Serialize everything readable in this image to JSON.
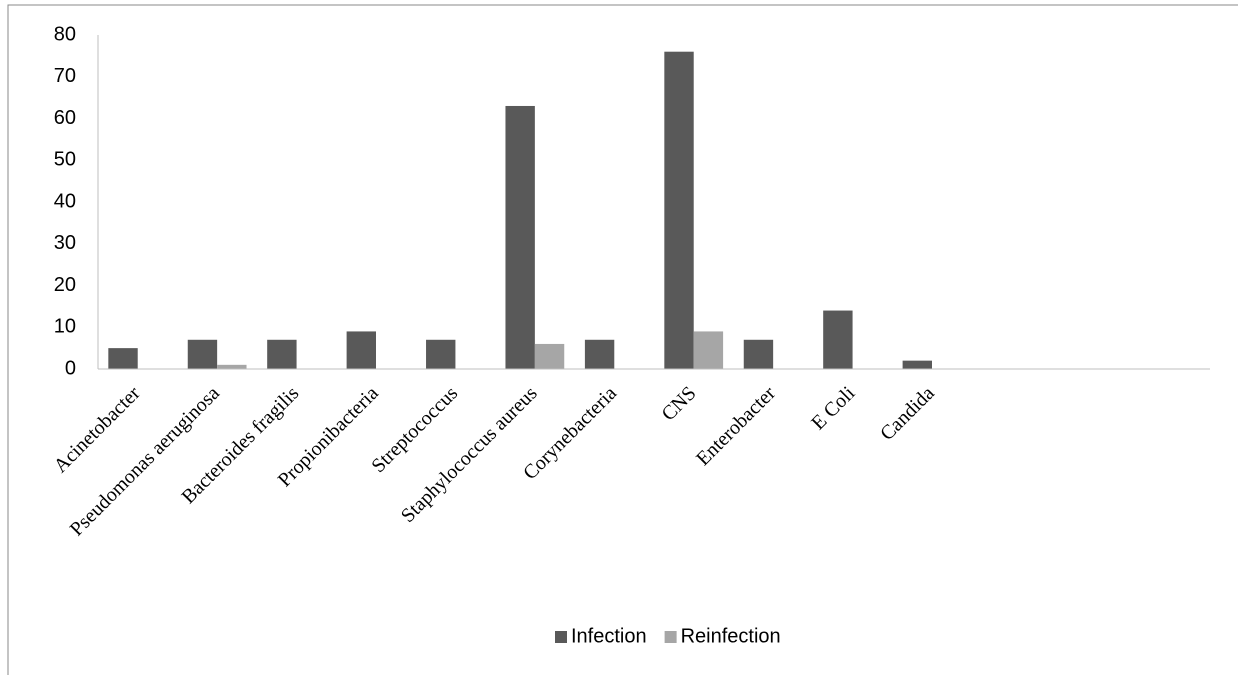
{
  "chart_data": {
    "type": "bar",
    "categories": [
      "Acinetobacter",
      "Pseudomonas aeruginosa",
      "Bacteroides fragilis",
      "Propionibacteria",
      "Streptococcus",
      "Staphylococcus aureus",
      "Corynebacteria",
      "CNS",
      "Enterobacter",
      "E Coli",
      "Candida",
      null,
      null,
      null
    ],
    "series": [
      {
        "name": "Infection",
        "color": "#595959",
        "values": [
          5,
          7,
          7,
          9,
          7,
          63,
          7,
          76,
          7,
          14,
          2,
          null,
          null,
          null
        ]
      },
      {
        "name": "Reinfection",
        "color": "#a6a6a6",
        "values": [
          0,
          1,
          0,
          0,
          0,
          6,
          0,
          9,
          0,
          0,
          0,
          null,
          null,
          null
        ]
      }
    ],
    "ylim": [
      0,
      80
    ],
    "yticks": [
      0,
      10,
      20,
      30,
      40,
      50,
      60,
      70,
      80
    ],
    "grid": false,
    "legend": "bottom"
  }
}
